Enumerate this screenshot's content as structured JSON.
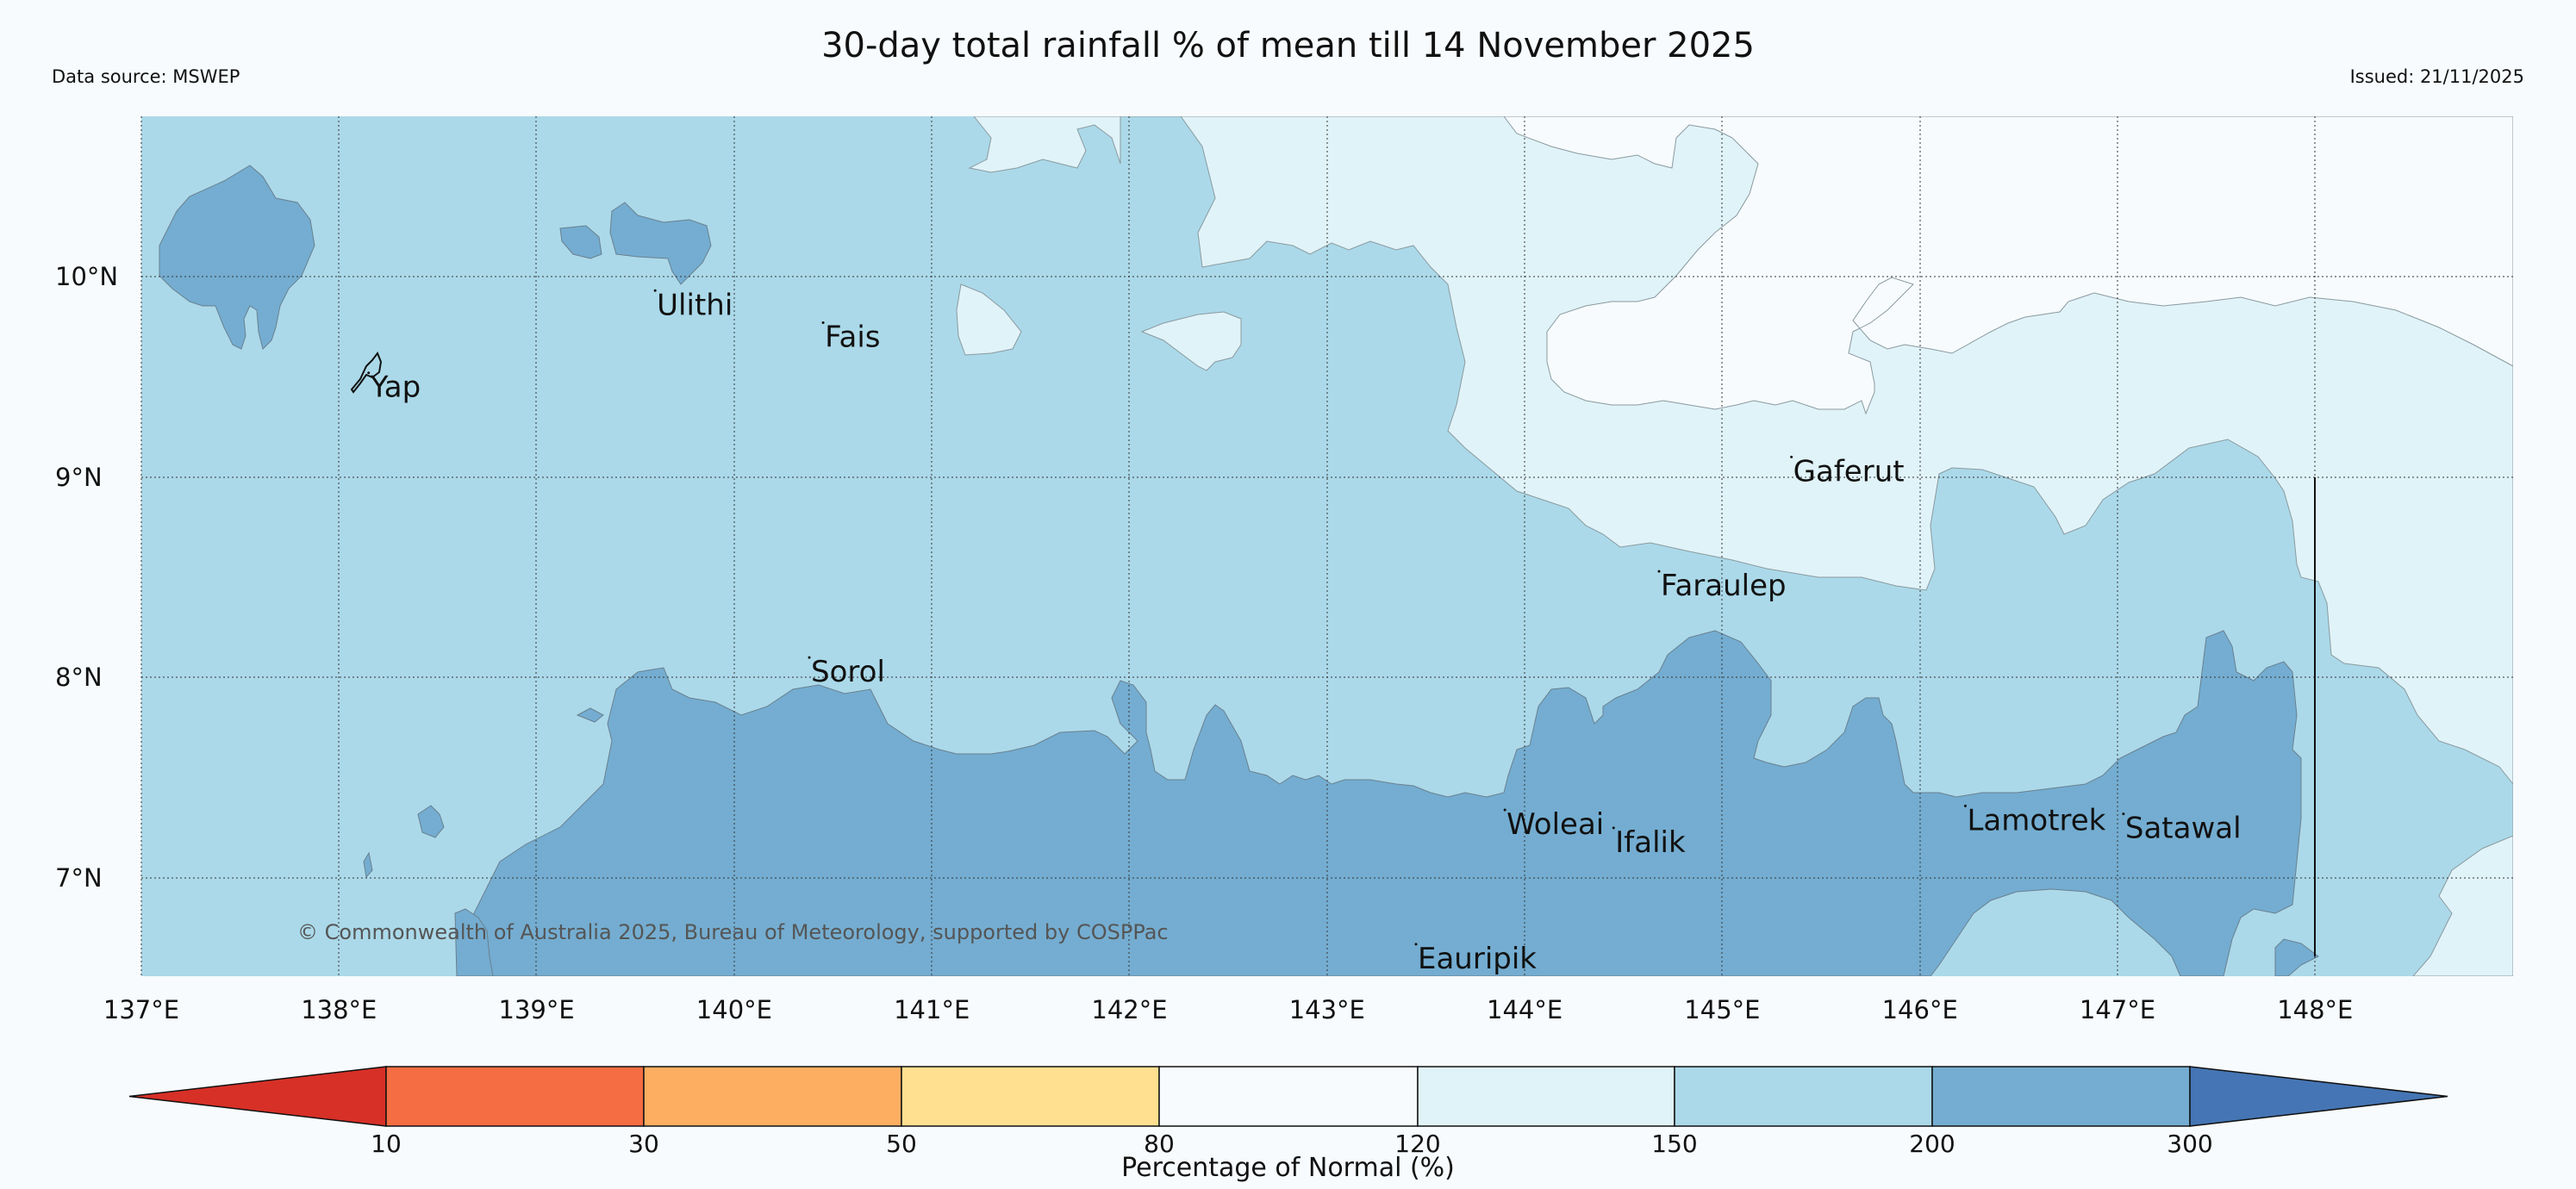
{
  "title": "30-day total rainfall % of mean till 14 November 2025",
  "data_source": "Data source: MSWEP",
  "issued": "Issued: 21/11/2025",
  "copyright": "© Commonwealth of Australia 2025, Bureau of Meteorology, supported by COSPPac",
  "x_ticks": [
    "137°E",
    "138°E",
    "139°E",
    "140°E",
    "141°E",
    "142°E",
    "143°E",
    "144°E",
    "145°E",
    "146°E",
    "147°E",
    "148°E"
  ],
  "y_ticks": [
    "10°N",
    "9°N",
    "8°N",
    "7°N"
  ],
  "places": [
    {
      "name": "Yap",
      "lon": 138.15,
      "lat": 9.52
    },
    {
      "name": "Ulithi",
      "lon": 139.6,
      "lat": 9.93
    },
    {
      "name": "Fais",
      "lon": 140.45,
      "lat": 9.77
    },
    {
      "name": "Gaferut",
      "lon": 145.35,
      "lat": 9.1
    },
    {
      "name": "Faraulep",
      "lon": 144.68,
      "lat": 8.53
    },
    {
      "name": "Sorol",
      "lon": 140.38,
      "lat": 8.1
    },
    {
      "name": "Woleai",
      "lon": 143.9,
      "lat": 7.34
    },
    {
      "name": "Ifalik",
      "lon": 144.45,
      "lat": 7.25
    },
    {
      "name": "Lamotrek",
      "lon": 146.23,
      "lat": 7.36
    },
    {
      "name": "Satawal",
      "lon": 147.03,
      "lat": 7.32
    },
    {
      "name": "Eauripik",
      "lon": 143.45,
      "lat": 6.67
    }
  ],
  "colorbar": {
    "title": "Percentage of Normal (%)",
    "labels": [
      "10",
      "30",
      "50",
      "80",
      "120",
      "150",
      "200",
      "300"
    ],
    "colors": [
      "#d73027",
      "#f46d43",
      "#fdae61",
      "#fee090",
      "#f7fbfd",
      "#e0f3f8",
      "#abd9e9",
      "#74add1",
      "#4575b4"
    ]
  }
}
